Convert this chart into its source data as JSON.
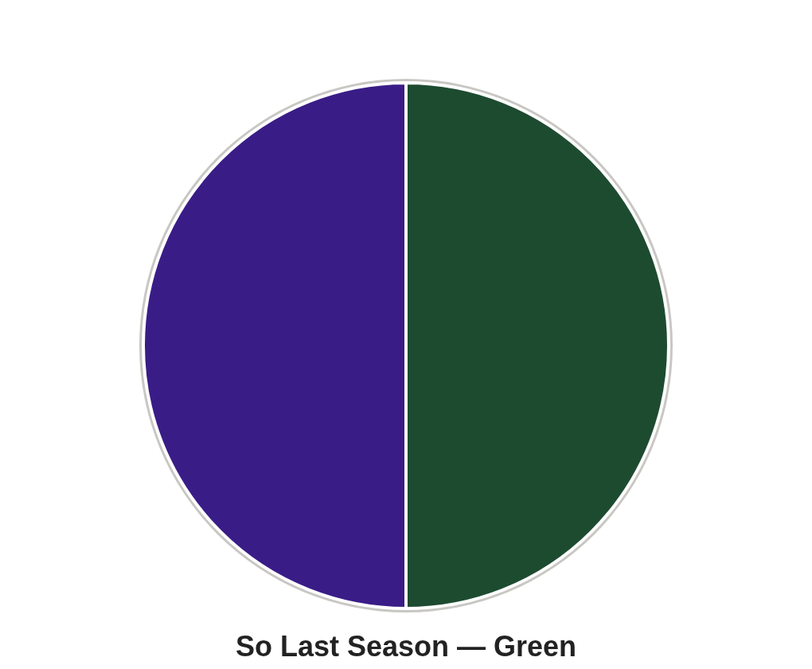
{
  "chart_data": {
    "type": "pie",
    "title": "So Last Season — Green",
    "categories": [
      null,
      null
    ],
    "values": [
      50,
      50
    ],
    "colors": [
      "#1d4b30",
      "#3a1c87"
    ]
  }
}
